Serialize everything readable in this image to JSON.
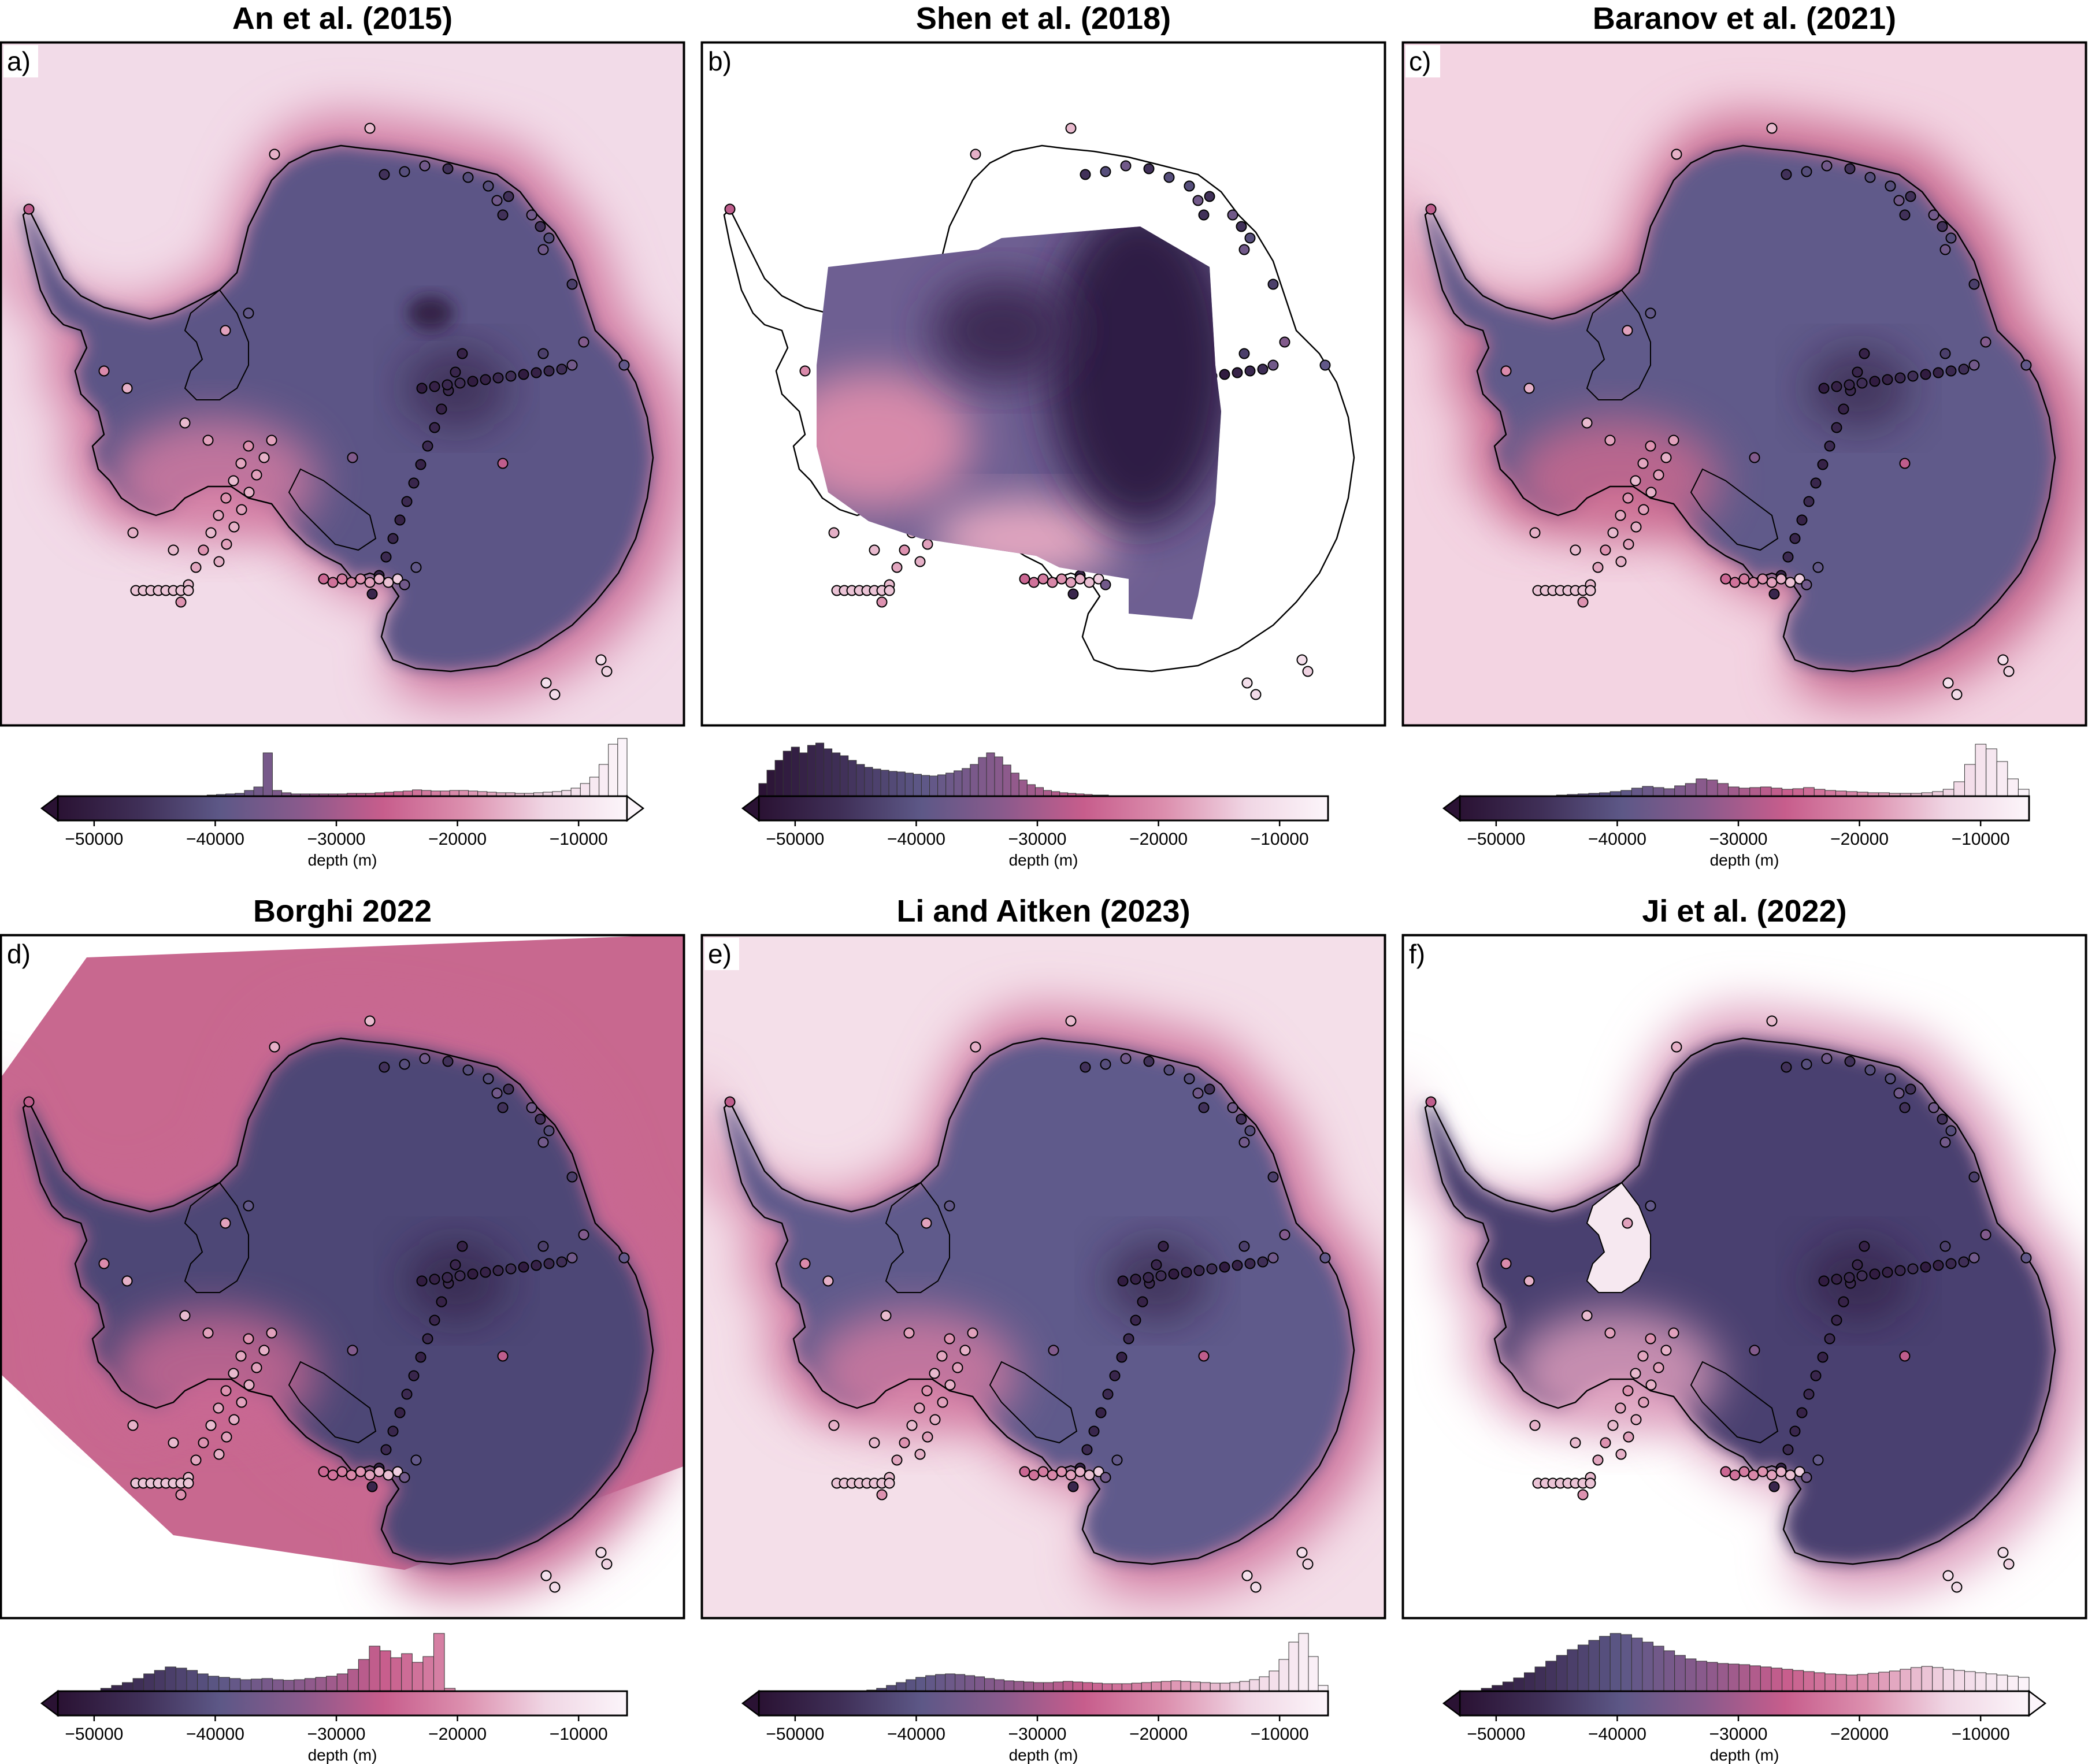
{
  "colorbar": {
    "ticks": [
      -50000,
      -40000,
      -30000,
      -20000,
      -10000
    ],
    "tick_labels": [
      "−50000",
      "−40000",
      "−30000",
      "−20000",
      "−10000"
    ],
    "label": "depth (m)",
    "range": [
      -53000,
      -6000
    ],
    "cmap": [
      "#2a1233",
      "#3f2f57",
      "#5d5887",
      "#8a5a8c",
      "#c75d8c",
      "#dc8fae",
      "#f0d6e4",
      "#fcf5fa"
    ]
  },
  "panels": [
    {
      "title": "An et al. (2015)",
      "label": "a)",
      "background": "#f2dbe8",
      "continent": "#5b5586",
      "halo": "#d27aa1",
      "full_coverage": true,
      "shen": false,
      "hist": [
        0,
        0,
        0,
        0,
        0,
        0,
        0,
        0,
        0,
        0,
        0,
        0,
        0,
        0,
        0,
        0.01,
        0.02,
        0.03,
        0.04,
        0.05,
        0.1,
        0.16,
        0.75,
        0.1,
        0.06,
        0.04,
        0.04,
        0.04,
        0.04,
        0.04,
        0.04,
        0.05,
        0.05,
        0.05,
        0.06,
        0.07,
        0.08,
        0.09,
        0.11,
        0.1,
        0.09,
        0.09,
        0.1,
        0.1,
        0.09,
        0.08,
        0.07,
        0.06,
        0.06,
        0.05,
        0.05,
        0.06,
        0.07,
        0.08,
        0.1,
        0.14,
        0.22,
        0.33,
        0.55,
        0.9,
        1.0
      ]
    },
    {
      "title": "Shen et al. (2018)",
      "label": "b)",
      "background": "#ffffff",
      "continent": "#3d2c52",
      "halo": "#d890b0",
      "full_coverage": false,
      "shen": true,
      "hist": [
        0.22,
        0.45,
        0.62,
        0.78,
        0.85,
        0.75,
        0.88,
        0.92,
        0.82,
        0.75,
        0.7,
        0.62,
        0.55,
        0.5,
        0.47,
        0.45,
        0.43,
        0.42,
        0.4,
        0.38,
        0.36,
        0.35,
        0.37,
        0.4,
        0.44,
        0.48,
        0.55,
        0.67,
        0.75,
        0.68,
        0.54,
        0.4,
        0.28,
        0.2,
        0.15,
        0.1,
        0.08,
        0.06,
        0.05,
        0.04,
        0.03,
        0.02,
        0.02,
        0.01,
        0.01,
        0,
        0,
        0,
        0,
        0,
        0,
        0,
        0,
        0,
        0,
        0,
        0,
        0,
        0,
        0,
        0,
        0,
        0,
        0,
        0,
        0,
        0,
        0,
        0,
        0
      ]
    },
    {
      "title": "Baranov et al. (2021)",
      "label": "c)",
      "background": "#f3d4e2",
      "continent": "#605a8a",
      "halo": "#c9698f",
      "full_coverage": true,
      "shen": false,
      "hist": [
        0,
        0,
        0,
        0,
        0,
        0,
        0,
        0,
        0.01,
        0.02,
        0.03,
        0.04,
        0.05,
        0.06,
        0.08,
        0.1,
        0.14,
        0.17,
        0.15,
        0.13,
        0.18,
        0.22,
        0.3,
        0.28,
        0.22,
        0.16,
        0.14,
        0.15,
        0.16,
        0.14,
        0.12,
        0.13,
        0.15,
        0.12,
        0.1,
        0.09,
        0.08,
        0.07,
        0.06,
        0.06,
        0.05,
        0.05,
        0.05,
        0.06,
        0.08,
        0.12,
        0.25,
        0.55,
        0.9,
        0.82,
        0.6,
        0.3,
        0.12
      ]
    },
    {
      "title": "Borghi 2022",
      "label": "d)",
      "background": "#ffffff",
      "continent": "#4e4676",
      "halo": "#c86893",
      "full_coverage": false,
      "shen": false,
      "hist": [
        0,
        0,
        0,
        0,
        0.05,
        0.1,
        0.15,
        0.22,
        0.3,
        0.36,
        0.42,
        0.4,
        0.36,
        0.3,
        0.26,
        0.24,
        0.22,
        0.2,
        0.21,
        0.22,
        0.2,
        0.19,
        0.2,
        0.22,
        0.24,
        0.26,
        0.3,
        0.38,
        0.55,
        0.78,
        0.7,
        0.58,
        0.65,
        0.5,
        0.6,
        1.0,
        0.05,
        0,
        0,
        0,
        0,
        0,
        0,
        0,
        0,
        0,
        0,
        0,
        0,
        0,
        0,
        0,
        0
      ]
    },
    {
      "title": "Li and Aitken (2023)",
      "label": "e)",
      "background": "#f4dfe9",
      "continent": "#5f5a8b",
      "halo": "#d27aa1",
      "full_coverage": true,
      "shen": false,
      "hist": [
        0,
        0,
        0,
        0,
        0,
        0,
        0,
        0,
        0,
        0,
        0,
        0.02,
        0.05,
        0.1,
        0.15,
        0.2,
        0.24,
        0.27,
        0.29,
        0.3,
        0.29,
        0.27,
        0.25,
        0.22,
        0.2,
        0.18,
        0.17,
        0.16,
        0.15,
        0.15,
        0.16,
        0.17,
        0.16,
        0.15,
        0.14,
        0.13,
        0.13,
        0.13,
        0.14,
        0.15,
        0.16,
        0.17,
        0.18,
        0.17,
        0.16,
        0.15,
        0.14,
        0.14,
        0.15,
        0.17,
        0.2,
        0.25,
        0.35,
        0.55,
        0.85,
        1.0,
        0.6,
        0.1
      ]
    },
    {
      "title": "Ji et al. (2022)",
      "label": "f)",
      "background": "#ffffff",
      "continent": "#4a416f",
      "halo": "#dc9bbb",
      "full_coverage": false,
      "shen": false,
      "hist": [
        0,
        0,
        0.05,
        0.1,
        0.16,
        0.23,
        0.32,
        0.42,
        0.52,
        0.62,
        0.72,
        0.8,
        0.88,
        0.95,
        1.0,
        0.98,
        0.92,
        0.85,
        0.78,
        0.7,
        0.62,
        0.56,
        0.52,
        0.5,
        0.48,
        0.47,
        0.46,
        0.44,
        0.42,
        0.4,
        0.38,
        0.36,
        0.34,
        0.32,
        0.3,
        0.29,
        0.28,
        0.29,
        0.31,
        0.33,
        0.35,
        0.38,
        0.41,
        0.43,
        0.41,
        0.38,
        0.36,
        0.34,
        0.32,
        0.3,
        0.28,
        0.26,
        0.24
      ]
    }
  ]
}
